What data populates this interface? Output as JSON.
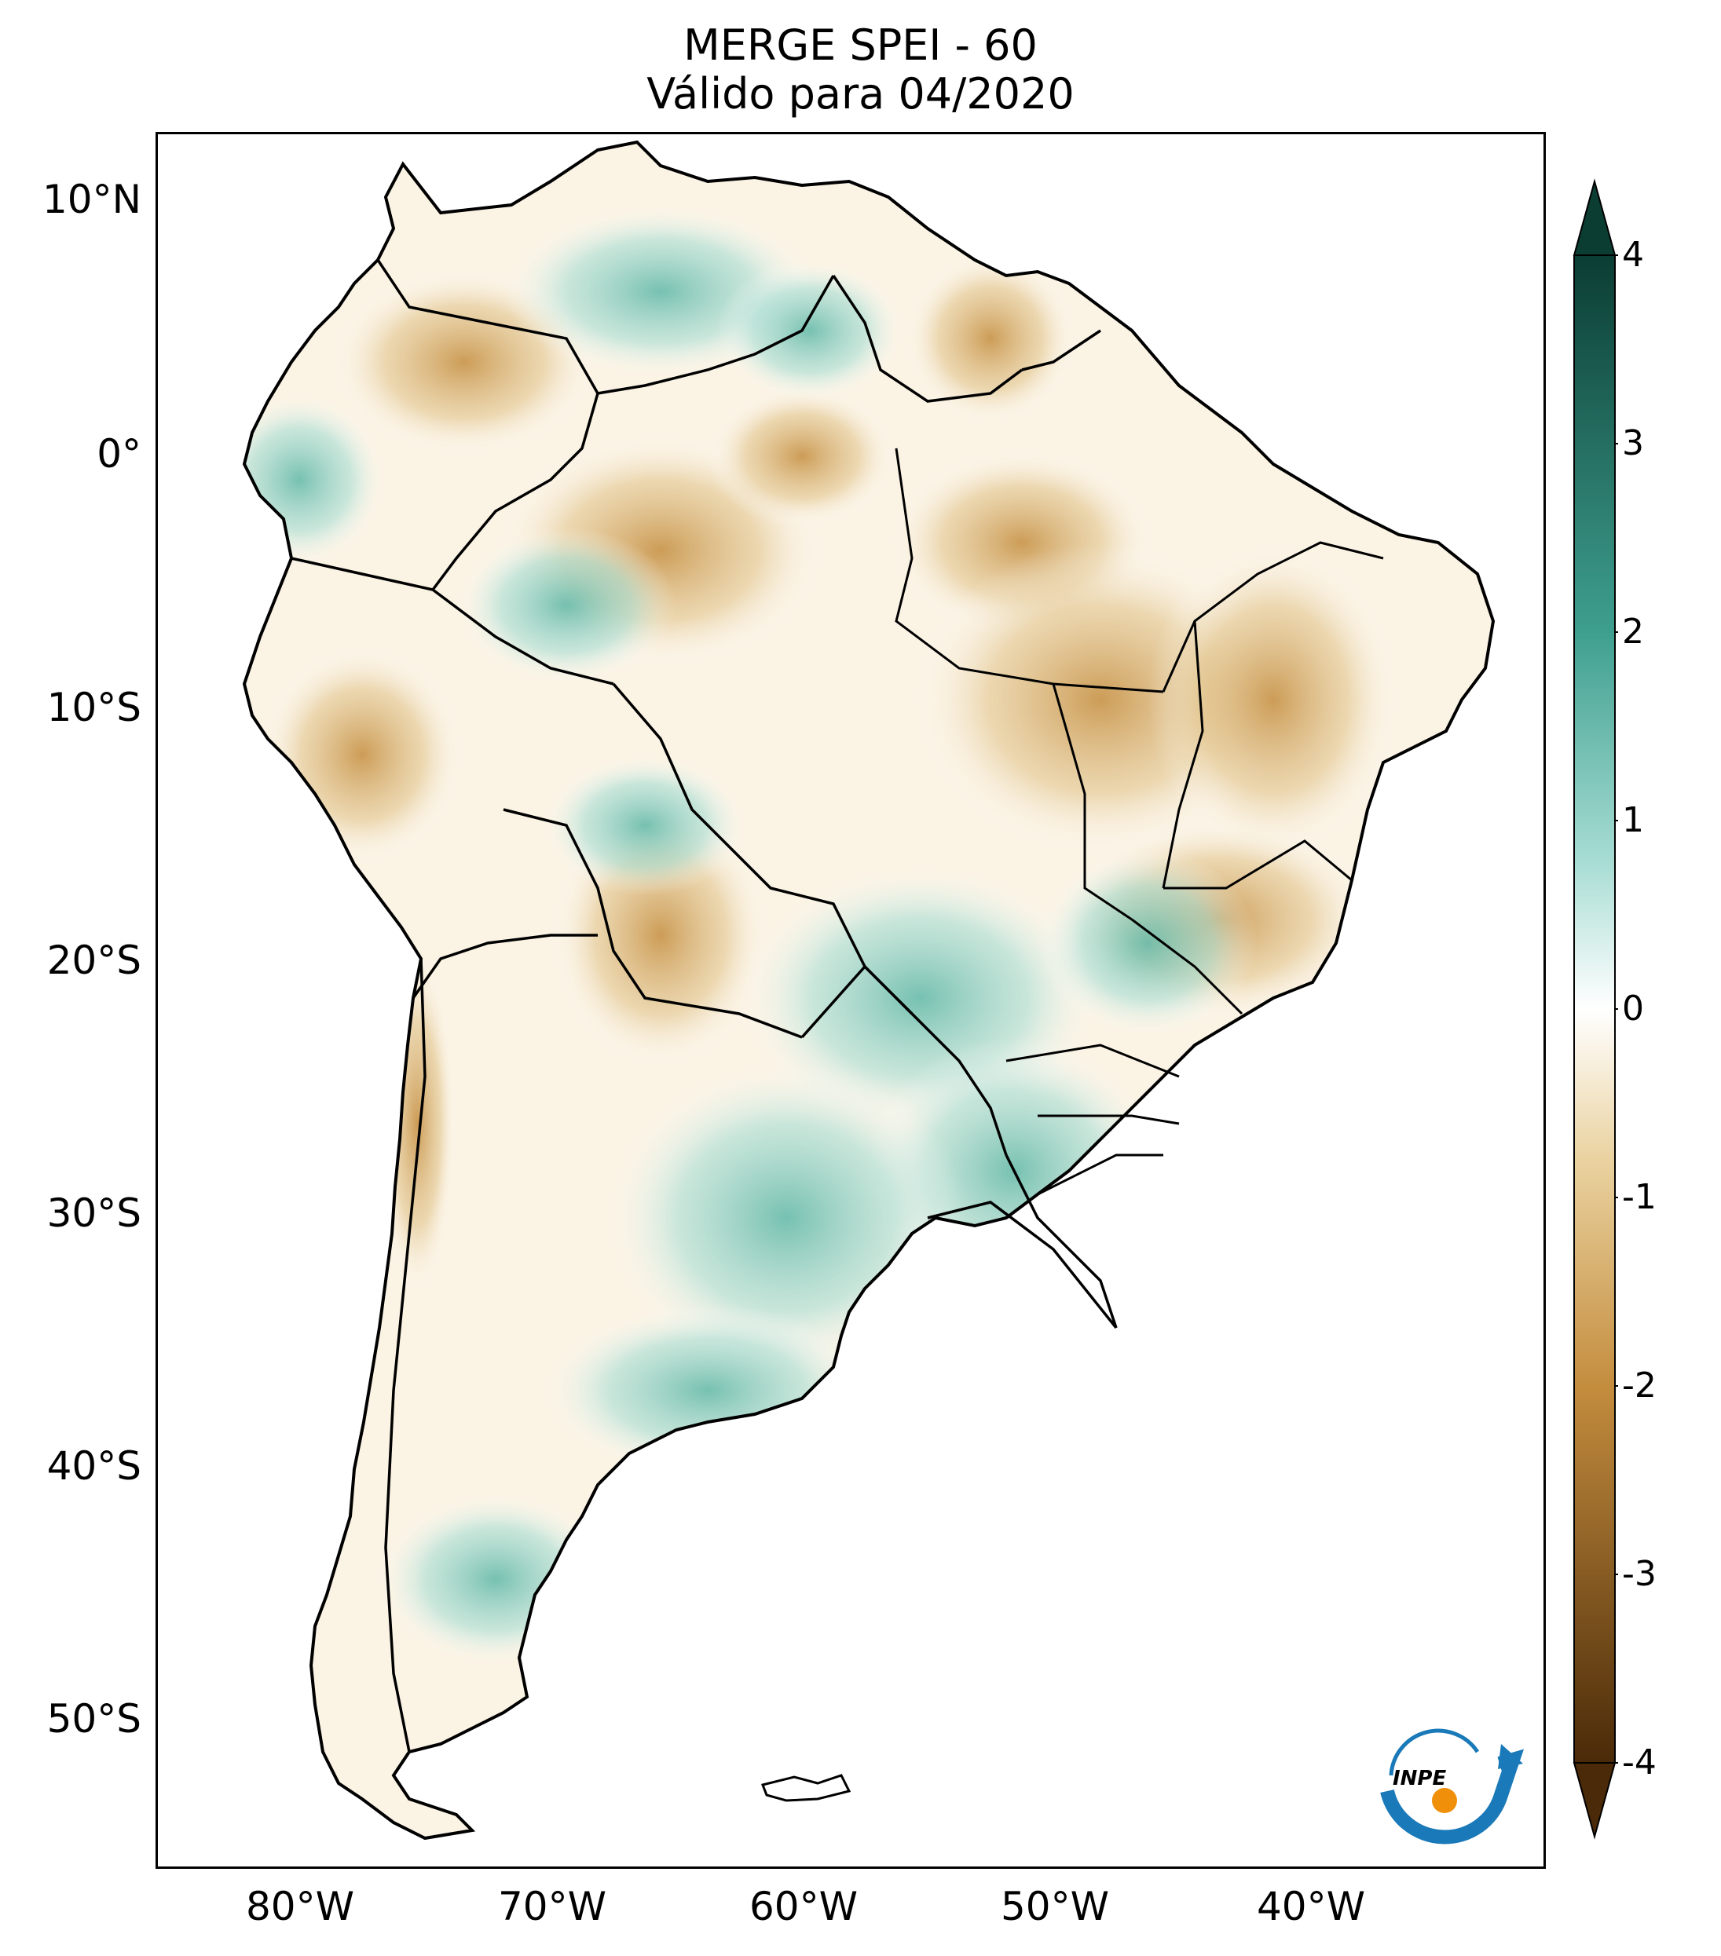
{
  "title": {
    "line1": "MERGE   SPEI - 60",
    "line2": "Válido para 04/2020"
  },
  "axes": {
    "lat_labels": [
      "10°N",
      "0°",
      "10°S",
      "20°S",
      "30°S",
      "40°S",
      "50°S"
    ],
    "lon_labels": [
      "80°W",
      "70°W",
      "60°W",
      "50°W",
      "40°W"
    ]
  },
  "colorbar": {
    "ticks": [
      "4",
      "3",
      "2",
      "1",
      "0",
      "-1",
      "-2",
      "-3",
      "-4"
    ],
    "colors": {
      "max": "#0b3d33",
      "high": "#3e9f8f",
      "mid_high": "#a6dcd3",
      "zero": "#ffffff",
      "mid_low": "#ead2a0",
      "low": "#c48d3e",
      "min": "#4a2a08"
    }
  },
  "logo": {
    "text": "INPE"
  },
  "colors": {
    "land_outline": "#000000",
    "wet": "#a8ddd4",
    "dry": "#d9b170"
  }
}
